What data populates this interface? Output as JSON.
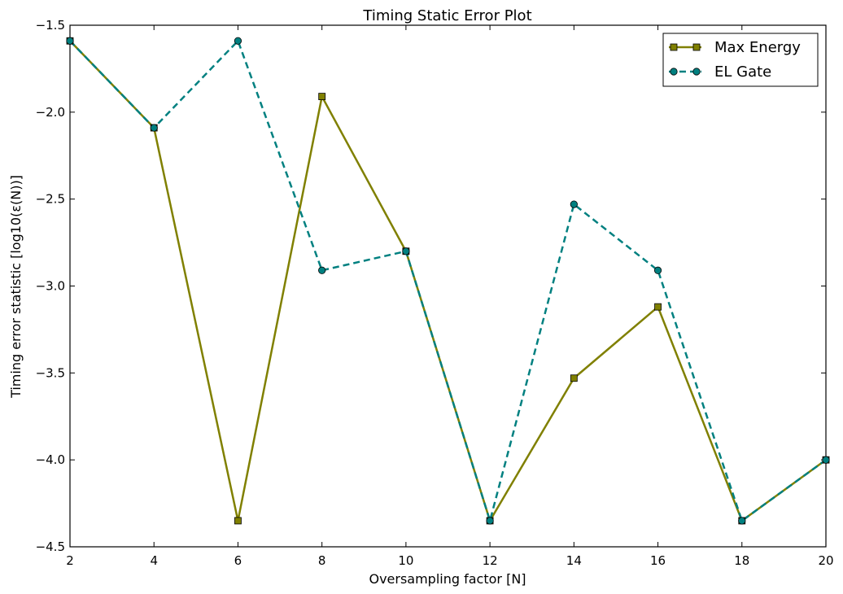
{
  "chart_data": {
    "type": "line",
    "title": "Timing Static Error Plot",
    "xlabel": "Oversampling factor [N]",
    "ylabel": "Timing error statistic [log10(ε(N))]",
    "xlim": [
      2,
      20
    ],
    "ylim": [
      -4.5,
      -1.5
    ],
    "xticks": [
      2,
      4,
      6,
      8,
      10,
      12,
      14,
      16,
      18,
      20
    ],
    "yticks": [
      -1.5,
      -2.0,
      -2.5,
      -3.0,
      -3.5,
      -4.0,
      -4.5
    ],
    "xtick_labels": [
      "2",
      "4",
      "6",
      "8",
      "10",
      "12",
      "14",
      "16",
      "18",
      "20"
    ],
    "ytick_labels": [
      "−1.5",
      "−2.0",
      "−2.5",
      "−3.0",
      "−3.5",
      "−4.0",
      "−4.5"
    ],
    "grid": false,
    "legend_position": "top-right",
    "x": [
      2,
      4,
      6,
      8,
      10,
      12,
      14,
      16,
      18,
      20
    ],
    "series": [
      {
        "name": "Max Energy",
        "values": [
          -1.59,
          -2.09,
          -4.35,
          -1.91,
          -2.8,
          -4.35,
          -3.53,
          -3.12,
          -4.35,
          -4.0
        ],
        "color": "#808000",
        "line_style": "solid",
        "marker": "square"
      },
      {
        "name": "EL Gate",
        "values": [
          -1.59,
          -2.09,
          -1.59,
          -2.91,
          -2.8,
          -4.35,
          -2.53,
          -2.91,
          -4.35,
          -4.0
        ],
        "color": "#008080",
        "line_style": "dashed",
        "marker": "circle"
      }
    ]
  }
}
